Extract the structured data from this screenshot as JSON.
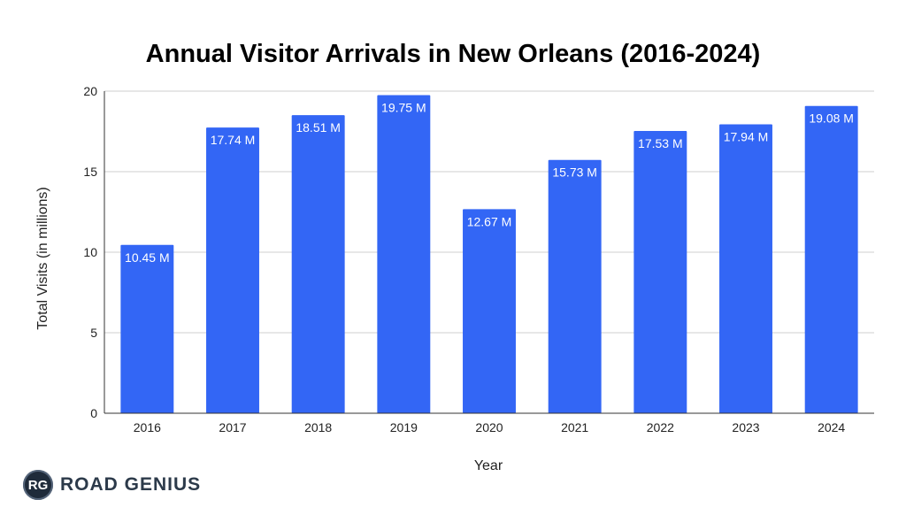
{
  "chart_data": {
    "type": "bar",
    "title": "Annual Visitor Arrivals in New Orleans (2016-2024)",
    "xlabel": "Year",
    "ylabel": "Total Visits (in millions)",
    "categories": [
      "2016",
      "2017",
      "2018",
      "2019",
      "2020",
      "2021",
      "2022",
      "2023",
      "2024"
    ],
    "values": [
      10.45,
      17.74,
      18.51,
      19.75,
      12.67,
      15.73,
      17.53,
      17.94,
      19.08
    ],
    "data_labels": [
      "10.45 M",
      "17.74 M",
      "18.51 M",
      "19.75 M",
      "12.67 M",
      "15.73 M",
      "17.53 M",
      "17.94 M",
      "19.08 M"
    ],
    "ylim": [
      0,
      20
    ],
    "yticks": [
      0,
      5,
      10,
      15,
      20
    ],
    "grid": true,
    "bar_color": "#3366f5"
  },
  "brand": {
    "initials": "RG",
    "name": "ROAD GENIUS"
  }
}
